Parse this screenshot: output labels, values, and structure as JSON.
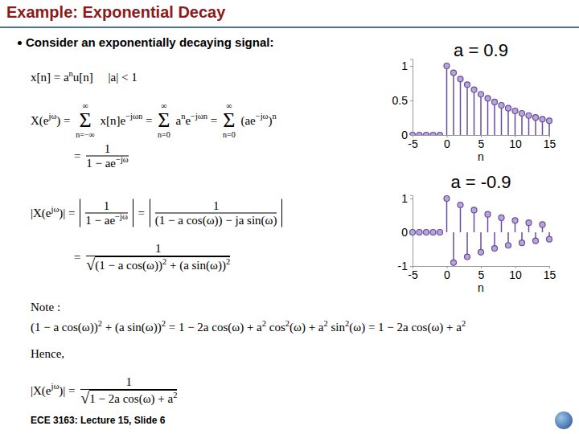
{
  "slide": {
    "title": "Example: Exponential Decay",
    "bullet": "Consider an exponentially decaying signal:",
    "footer": "ECE 3163: Lecture 15, Slide 6",
    "equations": [
      [
        "x[n] = a",
        {
          "sup": "n"
        },
        "u[n]     |a| < 1"
      ],
      [
        "X(e",
        {
          "sup": "jω"
        },
        ") = ",
        {
          "over": "∞",
          "op": "Σ",
          "under": "n=−∞"
        },
        " x[n]e",
        {
          "sup": "−jωn"
        },
        " = ",
        {
          "over": "∞",
          "op": "Σ",
          "under": "n=0"
        },
        " a",
        {
          "sup": "n"
        },
        "e",
        {
          "sup": "−jωn"
        },
        " = ",
        {
          "over": "∞",
          "op": "Σ",
          "under": "n=0"
        },
        " (ae",
        {
          "sup": "−jω"
        },
        ")",
        {
          "sup": "n"
        }
      ],
      [
        "= ",
        {
          "frac": [
            [
              "1"
            ],
            [
              "1 − ae",
              {
                "sup": "−jω"
              }
            ]
          ]
        }
      ],
      [
        "|X(e",
        {
          "sup": "jω"
        },
        ")| = ",
        {
          "abs": [
            {
              "frac": [
                [
                  "1"
                ],
                [
                  "1 − ae",
                  {
                    "sup": "−jω"
                  }
                ]
              ]
            }
          ]
        },
        " = ",
        {
          "abs": [
            {
              "frac": [
                [
                  "1"
                ],
                [
                  "(1 − a cos(ω)) − ja sin(ω)"
                ]
              ]
            }
          ]
        }
      ],
      [
        "= ",
        {
          "frac": [
            [
              "1"
            ],
            [
              {
                "root": "√",
                "of": [
                  "(1 − a cos(ω))",
                  {
                    "sup": "2"
                  },
                  " + (a sin(ω))",
                  {
                    "sup": "2"
                  }
                ]
              }
            ]
          ]
        }
      ],
      [
        "Note :"
      ],
      [
        "(1 − a cos(ω))",
        {
          "sup": "2"
        },
        " + (a sin(ω))",
        {
          "sup": "2"
        },
        " = 1 − 2a cos(ω) + a",
        {
          "sup": "2"
        },
        " cos",
        {
          "sup": "2"
        },
        "(ω) + a",
        {
          "sup": "2"
        },
        " sin",
        {
          "sup": "2"
        },
        "(ω) = 1 − 2a cos(ω) + a",
        {
          "sup": "2"
        }
      ],
      [
        "Hence,"
      ],
      [
        "|X(e",
        {
          "sup": "jω"
        },
        ")| = ",
        {
          "frac": [
            [
              "1"
            ],
            [
              {
                "root": "√",
                "of": [
                  "1 − 2a cos(ω) + a",
                  {
                    "sup": "2"
                  }
                ]
              }
            ]
          ]
        }
      ]
    ]
  },
  "chart_data": [
    {
      "type": "stem",
      "title": "a = 0.9",
      "xlabel": "n",
      "color": "#6a4c9c",
      "marker": "o",
      "x": [
        -5,
        -4,
        -3,
        -2,
        -1,
        0,
        1,
        2,
        3,
        4,
        5,
        6,
        7,
        8,
        9,
        10,
        11,
        12,
        13,
        14,
        15
      ],
      "values": [
        0,
        0,
        0,
        0,
        0,
        1,
        0.9,
        0.81,
        0.729,
        0.656,
        0.59,
        0.531,
        0.478,
        0.43,
        0.387,
        0.349,
        0.314,
        0.282,
        0.254,
        0.229,
        0.206
      ],
      "xlim": [
        -5,
        15
      ],
      "ylim": [
        0,
        1.1
      ],
      "xticks": [
        -5,
        0,
        5,
        10,
        15
      ],
      "yticks": [
        0,
        0.5,
        1
      ]
    },
    {
      "type": "stem",
      "title": "a = -0.9",
      "xlabel": "n",
      "color": "#6a4c9c",
      "marker": "o",
      "x": [
        -5,
        -4,
        -3,
        -2,
        -1,
        0,
        1,
        2,
        3,
        4,
        5,
        6,
        7,
        8,
        9,
        10,
        11,
        12,
        13,
        14,
        15
      ],
      "values": [
        0,
        0,
        0,
        0,
        0,
        1,
        -0.9,
        0.81,
        -0.729,
        0.656,
        -0.59,
        0.531,
        -0.478,
        0.43,
        -0.387,
        0.349,
        -0.314,
        0.282,
        -0.254,
        0.229,
        -0.206
      ],
      "xlim": [
        -5,
        15
      ],
      "ylim": [
        -1,
        1.1
      ],
      "xticks": [
        -5,
        0,
        5,
        10,
        15
      ],
      "yticks": [
        -1,
        0,
        1
      ]
    }
  ]
}
